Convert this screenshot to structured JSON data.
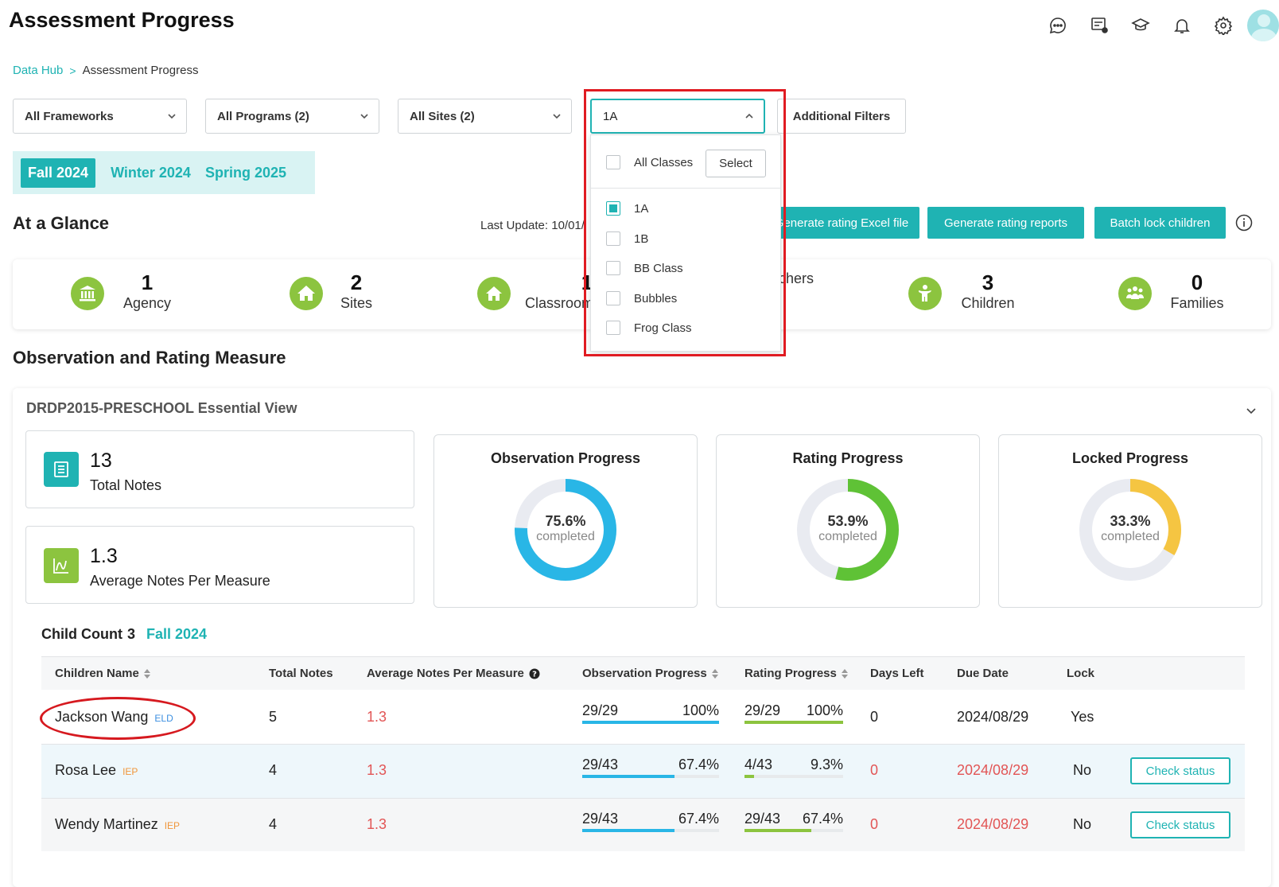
{
  "header": {
    "title": "Assessment Progress",
    "icons": [
      "chat-icon",
      "messages-icon",
      "graduation-cap-icon",
      "bell-icon",
      "gear-icon",
      "avatar"
    ]
  },
  "breadcrumb": {
    "parent": "Data Hub",
    "separator": ">",
    "current": "Assessment Progress"
  },
  "filters": {
    "frameworks": "All Frameworks",
    "programs": "All Programs (2)",
    "sites": "All Sites (2)",
    "classes": "1A",
    "additional": "Additional Filters"
  },
  "terms": [
    {
      "label": "Fall 2024",
      "active": true
    },
    {
      "label": "Winter 2024",
      "active": false
    },
    {
      "label": "Spring 2025",
      "active": false
    }
  ],
  "glance": {
    "title": "At a Glance",
    "last_update": "Last Update: 10/01/",
    "buttons": {
      "excel": "Generate rating Excel file",
      "reports": "Generate rating reports",
      "batch_lock": "Batch lock children"
    },
    "stats": [
      {
        "value": "1",
        "label": "Agency"
      },
      {
        "value": "2",
        "label": "Sites"
      },
      {
        "value": "1",
        "label": "Classrooms"
      },
      {
        "value": "",
        "label": "Teachers"
      },
      {
        "value": "3",
        "label": "Children"
      },
      {
        "value": "0",
        "label": "Families"
      }
    ]
  },
  "observation": {
    "title": "Observation and Rating Measure",
    "view_title": "DRDP2015-PRESCHOOL Essential View",
    "total_notes": {
      "value": "13",
      "label": "Total Notes"
    },
    "avg_notes": {
      "value": "1.3",
      "label": "Average Notes Per Measure"
    },
    "progress": [
      {
        "title": "Observation Progress",
        "pct_label": "75.6%",
        "pct": 0.756,
        "sub": "completed",
        "color": "#29b6e6"
      },
      {
        "title": "Rating Progress",
        "pct_label": "53.9%",
        "pct": 0.539,
        "sub": "completed",
        "color": "#5fc236"
      },
      {
        "title": "Locked Progress",
        "pct_label": "33.3%",
        "pct": 0.333,
        "sub": "completed",
        "color": "#f5c542"
      }
    ]
  },
  "child_count": {
    "label": "Child Count",
    "value": "3",
    "term": "Fall 2024"
  },
  "table": {
    "headers": {
      "name": "Children Name",
      "total_notes": "Total Notes",
      "avg_notes": "Average Notes Per Measure",
      "obs": "Observation Progress",
      "rating": "Rating Progress",
      "days_left": "Days Left",
      "due_date": "Due Date",
      "lock": "Lock"
    },
    "rows": [
      {
        "name": "Jackson Wang",
        "tag": "ELD",
        "total": "5",
        "avg": "1.3",
        "obs_frac": "29/29",
        "obs_pct": "100%",
        "obs_val": 1.0,
        "rate_frac": "29/29",
        "rate_pct": "100%",
        "rate_val": 1.0,
        "days": "0",
        "due": "2024/08/29",
        "lock": "Yes",
        "action": ""
      },
      {
        "name": "Rosa Lee",
        "tag": "IEP",
        "total": "4",
        "avg": "1.3",
        "obs_frac": "29/43",
        "obs_pct": "67.4%",
        "obs_val": 0.674,
        "rate_frac": "4/43",
        "rate_pct": "9.3%",
        "rate_val": 0.093,
        "days": "0",
        "due": "2024/08/29",
        "lock": "No",
        "action": "Check status"
      },
      {
        "name": "Wendy Martinez",
        "tag": "IEP",
        "total": "4",
        "avg": "1.3",
        "obs_frac": "29/43",
        "obs_pct": "67.4%",
        "obs_val": 0.674,
        "rate_frac": "29/43",
        "rate_pct": "67.4%",
        "rate_val": 0.674,
        "days": "0",
        "due": "2024/08/29",
        "lock": "No",
        "action": "Check status"
      }
    ]
  },
  "class_dropdown": {
    "all_label": "All Classes",
    "select_button": "Select",
    "options": [
      {
        "label": "1A",
        "checked": true
      },
      {
        "label": "1B",
        "checked": false
      },
      {
        "label": "BB Class",
        "checked": false
      },
      {
        "label": "Bubbles",
        "checked": false
      },
      {
        "label": "Frog Class",
        "checked": false
      }
    ]
  },
  "colors": {
    "accent": "#1fb3b3",
    "green": "#8cc43f",
    "red": "#e25555",
    "annotation": "#e01b22"
  }
}
